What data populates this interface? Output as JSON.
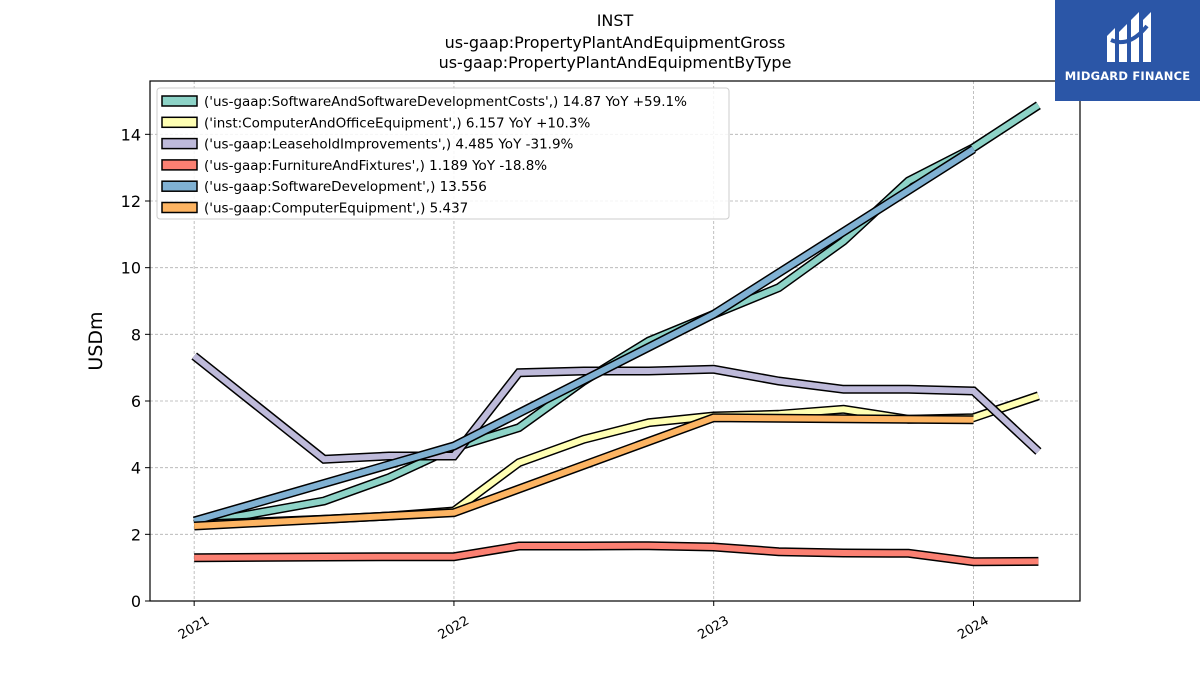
{
  "header": {
    "title_lines": [
      "INST",
      "us-gaap:PropertyPlantAndEquipmentGross",
      "us-gaap:PropertyPlantAndEquipmentByType"
    ]
  },
  "brand": {
    "name": "MIDGARD FINANCE",
    "background": "#2b56a7"
  },
  "chart_data": {
    "type": "line",
    "title": "INST\nus-gaap:PropertyPlantAndEquipmentGross\nus-gaap:PropertyPlantAndEquipmentByType",
    "ylabel": "USDm",
    "xlabel": "",
    "ylim": [
      0,
      15.6
    ],
    "yticks": [
      0,
      2,
      4,
      6,
      8,
      10,
      12,
      14
    ],
    "xlim": [
      2020.83,
      2024.41
    ],
    "xticks": [
      {
        "value": 2021,
        "label": "2021"
      },
      {
        "value": 2022,
        "label": "2022"
      },
      {
        "value": 2023,
        "label": "2023"
      },
      {
        "value": 2024,
        "label": "2024"
      }
    ],
    "grid": true,
    "legend_position": "upper-left",
    "series": [
      {
        "name": "('us-gaap:SoftwareAndSoftwareDevelopmentCosts',) 14.87 YoY +59.1%",
        "color": "#8dd3c7",
        "x": [
          2021.0,
          2021.5,
          2021.75,
          2022.0,
          2022.25,
          2022.5,
          2022.75,
          2023.0,
          2023.25,
          2023.5,
          2023.75,
          2024.0,
          2024.25
        ],
        "y": [
          2.3,
          3.0,
          3.7,
          4.6,
          5.2,
          6.6,
          7.8,
          8.6,
          9.4,
          10.8,
          12.6,
          13.6,
          14.87
        ]
      },
      {
        "name": "('inst:ComputerAndOfficeEquipment',) 6.157 YoY +10.3%",
        "color": "#ffffb3",
        "x": [
          2021.0,
          2021.5,
          2021.75,
          2022.0,
          2022.25,
          2022.5,
          2022.75,
          2023.0,
          2023.25,
          2023.5,
          2023.75,
          2024.0,
          2024.25
        ],
        "y": [
          2.3,
          2.45,
          2.55,
          2.7,
          4.15,
          4.85,
          5.35,
          5.55,
          5.6,
          5.75,
          5.45,
          5.5,
          6.157
        ]
      },
      {
        "name": "('us-gaap:LeaseholdImprovements',) 4.485 YoY -31.9%",
        "color": "#bebada",
        "x": [
          2021.0,
          2021.5,
          2021.75,
          2022.0,
          2022.25,
          2022.5,
          2022.75,
          2023.0,
          2023.25,
          2023.5,
          2023.75,
          2024.0,
          2024.25
        ],
        "y": [
          7.35,
          4.25,
          4.35,
          4.35,
          6.85,
          6.9,
          6.9,
          6.95,
          6.6,
          6.35,
          6.35,
          6.3,
          4.485
        ]
      },
      {
        "name": "('us-gaap:FurnitureAndFixtures',) 1.189 YoY -18.8%",
        "color": "#fb8072",
        "x": [
          2021.0,
          2021.5,
          2021.75,
          2022.0,
          2022.25,
          2022.5,
          2022.75,
          2023.0,
          2023.25,
          2023.5,
          2023.75,
          2024.0,
          2024.25
        ],
        "y": [
          1.3,
          1.32,
          1.33,
          1.33,
          1.65,
          1.65,
          1.66,
          1.62,
          1.48,
          1.44,
          1.43,
          1.18,
          1.189
        ]
      },
      {
        "name": "('us-gaap:SoftwareDevelopment',) 13.556",
        "color": "#80b1d3",
        "x": [
          2021.0,
          2022.0,
          2023.0,
          2024.0
        ],
        "y": [
          2.4,
          4.65,
          8.6,
          13.556
        ]
      },
      {
        "name": "('us-gaap:ComputerEquipment',) 5.437",
        "color": "#fdb462",
        "x": [
          2021.0,
          2022.0,
          2023.0,
          2024.0
        ],
        "y": [
          2.25,
          2.65,
          5.5,
          5.437
        ]
      }
    ]
  }
}
